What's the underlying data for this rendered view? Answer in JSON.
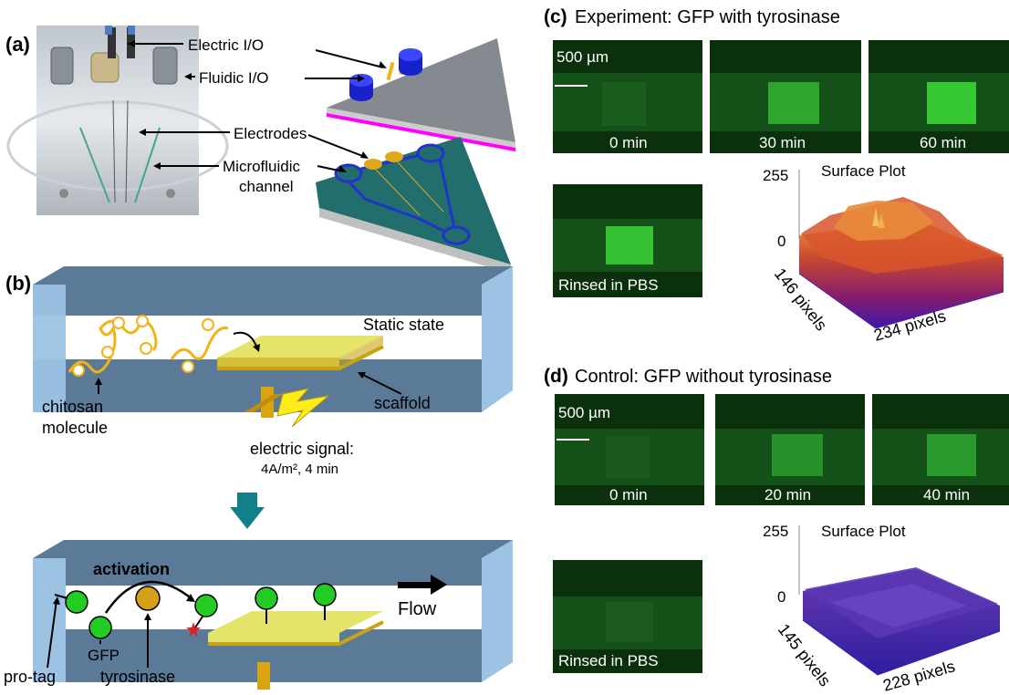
{
  "panel_a": {
    "label": "(a)",
    "electric_io": "Electric I/O",
    "fluidic_io": "Fluidic I/O",
    "electrodes": "Electrodes",
    "microfluidic_1": "Microfluidic",
    "microfluidic_2": "channel"
  },
  "panel_b": {
    "label": "(b)",
    "static_state": "Static state",
    "chitosan_1": "chitosan",
    "chitosan_2": "molecule",
    "scaffold": "scaffold",
    "signal_1": "electric signal:",
    "signal_2": "4A/m², 4 min",
    "activation": "activation",
    "flow": "Flow",
    "gfp": "GFP",
    "pro_tag": "pro-tag",
    "tyrosinase": "tyrosinase"
  },
  "panel_c": {
    "label": "(c)",
    "title": "Experiment: GFP with tyrosinase",
    "scale_bar": "500 µm",
    "frames": [
      "0 min",
      "30 min",
      "60 min"
    ],
    "rinsed": "Rinsed in PBS",
    "surface_title": "Surface Plot",
    "z_max": "255",
    "z_min": "0",
    "x_axis": "146 pixels",
    "y_axis": "234 pixels"
  },
  "panel_d": {
    "label": "(d)",
    "title": "Control: GFP without tyrosinase",
    "scale_bar": "500 µm",
    "frames": [
      "0 min",
      "20 min",
      "40 min"
    ],
    "rinsed": "Rinsed in PBS",
    "surface_title": "Surface Plot",
    "z_max": "255",
    "z_min": "0",
    "x_axis": "145 pixels",
    "y_axis": "228 pixels"
  },
  "colors": {
    "channel_wall": "#5b7a97",
    "channel_end": "#9cc3e3",
    "scaffold": "#e4e46a",
    "electrode": "#d9a512",
    "chitosan": "#f2b317",
    "gfp": "#22cc22",
    "tyrosinase": "#d4a017",
    "arrow_teal": "#11808a",
    "fluor_bright": "#39e13a",
    "fluor_dim": "#1f6a22"
  }
}
